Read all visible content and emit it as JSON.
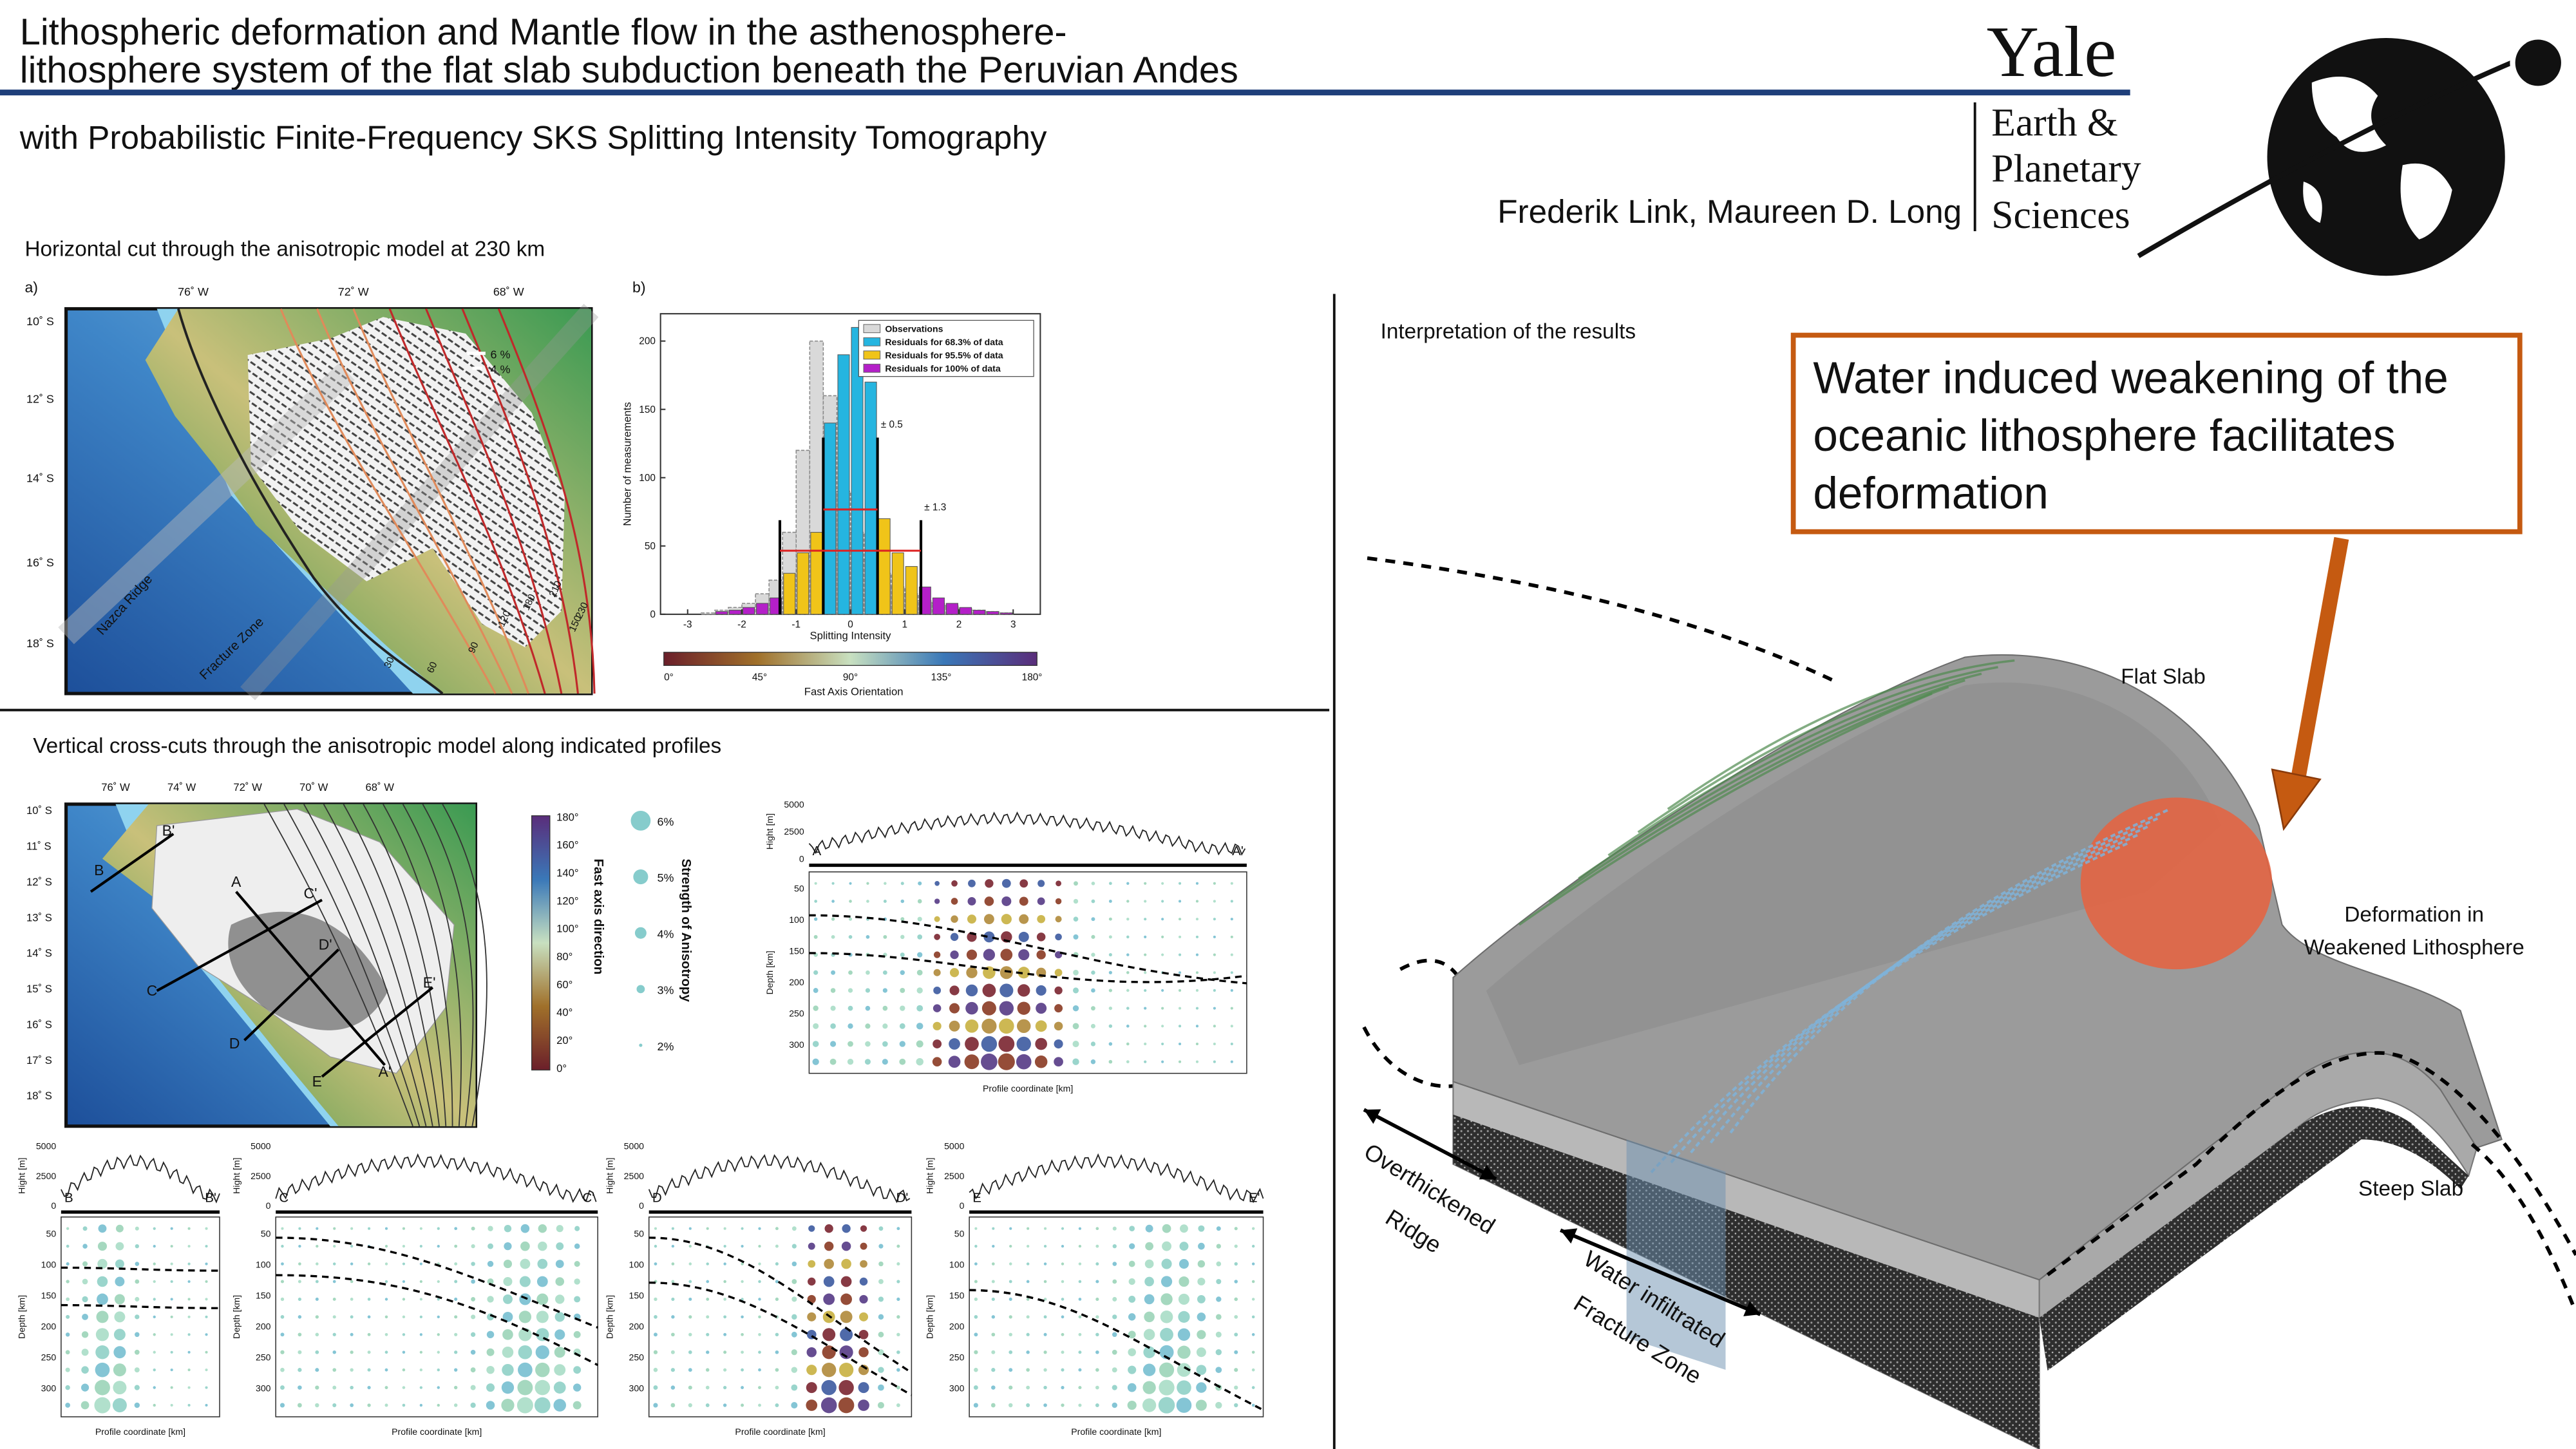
{
  "header": {
    "title_lines": [
      "Lithospheric deformation and Mantle flow in the asthenosphere-",
      "lithosphere system of the flat slab subduction beneath the Peruvian Andes"
    ],
    "subtitle": "with Probabilistic Finite-Frequency SKS Splitting Intensity Tomography",
    "authors": "Frederik Link, Maureen D. Long",
    "logo": {
      "name": "Yale",
      "department": [
        "Earth &",
        "Planetary",
        "Sciences"
      ]
    }
  },
  "horizontal_cut": {
    "heading": "Horizontal cut through the anisotropic model at 230 km",
    "map": {
      "panel_label": "a)",
      "lon_labels": [
        "76˚ W",
        "72˚ W",
        "68˚ W"
      ],
      "lat_labels": [
        "10˚ S",
        "12˚ S",
        "14˚ S",
        "16˚ S",
        "18˚ S"
      ],
      "scale_labels": [
        "6 %",
        "4 %"
      ],
      "features": [
        "Nazca Ridge",
        "Fracture Zone"
      ],
      "contour_labels": [
        "30",
        "60",
        "90",
        "120",
        "180",
        "210",
        "150",
        "230"
      ]
    },
    "histogram": {
      "panel_label": "b)",
      "y_label": "Number of measurements",
      "x_label": "Splitting Intensity",
      "bins": [
        -3,
        -2.75,
        -2.5,
        -2.25,
        -2,
        -1.75,
        -1.5,
        -1.25,
        -1,
        -0.75,
        -0.5,
        -0.25,
        0,
        0.25,
        0.5,
        0.75,
        1,
        1.25,
        1.5,
        1.75,
        2,
        2.25,
        2.5,
        2.75,
        3
      ],
      "residual_counts": [
        0,
        0,
        2,
        3,
        5,
        8,
        12,
        30,
        45,
        60,
        140,
        190,
        210,
        170,
        70,
        45,
        35,
        20,
        12,
        8,
        5,
        3,
        2,
        1
      ],
      "observation_counts": [
        0,
        1,
        3,
        5,
        8,
        15,
        25,
        60,
        120,
        200,
        160,
        90,
        60,
        40,
        30,
        20,
        15,
        10,
        8,
        6,
        4,
        3,
        2,
        1
      ],
      "xlim": [
        -3.5,
        3.5
      ],
      "ylim": [
        0,
        220
      ],
      "xticks": [
        -3,
        -2,
        -1,
        0,
        1,
        2,
        3
      ],
      "yticks": [
        0,
        50,
        100,
        150,
        200
      ],
      "legend": [
        {
          "name": "Observations",
          "color": "#d9d9d9"
        },
        {
          "name": "Residuals for 68.3% of data",
          "color": "#25b5e0"
        },
        {
          "name": "Residuals for 95.5% of data",
          "color": "#f0c419"
        },
        {
          "name": "Residuals for 100% of data",
          "color": "#b41fc8"
        }
      ],
      "bounds": [
        {
          "value": 0.5,
          "label": "± 0.5"
        },
        {
          "value": 1.3,
          "label": "± 1.3"
        }
      ],
      "colorbar": {
        "label": "Fast Axis Orientation",
        "ticks": [
          "0°",
          "45°",
          "90°",
          "135°",
          "180°"
        ]
      }
    }
  },
  "vertical_cuts": {
    "heading": "Vertical cross-cuts through the anisotropic model along indicated profiles",
    "map": {
      "lon_labels": [
        "76˚ W",
        "74˚ W",
        "72˚ W",
        "70˚ W",
        "68˚ W"
      ],
      "lat_labels": [
        "10˚ S",
        "11˚ S",
        "12˚ S",
        "13˚ S",
        "14˚ S",
        "15˚ S",
        "16˚ S",
        "17˚ S",
        "18˚ S"
      ]
    },
    "colorbar": {
      "label": "Fast axis direction",
      "ticks": [
        "180°",
        "160°",
        "140°",
        "120°",
        "100°",
        "80°",
        "60°",
        "40°",
        "20°",
        "0°"
      ]
    },
    "size_legend": {
      "label": "Strength of Anisotropy",
      "entries": [
        "6%",
        "5%",
        "4%",
        "3%",
        "2%"
      ]
    },
    "sections": [
      {
        "start": "A",
        "end": "A'"
      },
      {
        "start": "B",
        "end": "B'"
      },
      {
        "start": "C",
        "end": "C'"
      },
      {
        "start": "D",
        "end": "D'"
      },
      {
        "start": "E",
        "end": "E'"
      }
    ],
    "height_label": "Hight [m]",
    "height_ticks": [
      "5000",
      "2500",
      "0"
    ],
    "depth_label": "Depth [km]",
    "depth_ticks": [
      "50",
      "100",
      "150",
      "200",
      "250",
      "300"
    ],
    "x_label": "Profile coordinate [km]"
  },
  "interpretation": {
    "heading": "Interpretation of the results",
    "key_message": [
      "Water induced weakening of the",
      "oceanic lithosphere facilitates",
      "deformation"
    ],
    "labels": {
      "flat_slab": [
        "Flat Slab"
      ],
      "deformation": [
        "Deformation in",
        "Weakened Lithosphere"
      ],
      "steep_slab": [
        "Steep Slab"
      ],
      "ridge": [
        "Overthickened",
        "Ridge"
      ],
      "fracture_zone": [
        "Water infiltrated",
        "Fracture Zone"
      ]
    }
  }
}
